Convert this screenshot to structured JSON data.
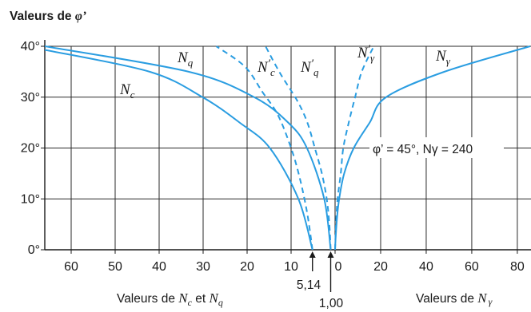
{
  "chart_data": {
    "type": "line",
    "title": "",
    "ylabel_text": "Valeurs de ",
    "ylabel_symbol": "φ’",
    "xlabel_left_text": "Valeurs de ",
    "xlabel_left_nc": "N",
    "xlabel_left_nc_sub": "c",
    "xlabel_left_mid": " et ",
    "xlabel_left_nq": "N",
    "xlabel_left_nq_sub": "q",
    "xlabel_right_text": "Valeurs de ",
    "xlabel_right_n": "N",
    "xlabel_right_sub": "γ",
    "y_ticks": [
      "0°",
      "10°",
      "20°",
      "30°",
      "40°"
    ],
    "y_tick_values": [
      0,
      10,
      20,
      30,
      40
    ],
    "ylim": [
      0,
      40
    ],
    "x_left_ticks": [
      "60",
      "50",
      "40",
      "30",
      "20",
      "10",
      "0"
    ],
    "x_left_tick_values": [
      60,
      50,
      40,
      30,
      20,
      10,
      0
    ],
    "x_left_range": [
      66,
      0
    ],
    "x_right_ticks": [
      "20",
      "40",
      "60",
      "80"
    ],
    "x_right_tick_values": [
      20,
      40,
      60,
      80
    ],
    "x_right_range": [
      0,
      86
    ],
    "grid": true,
    "annotation_text": "φ’ = 45°, Nγ = 240",
    "arrow_labels": [
      {
        "text": "5,14",
        "x_value": 5.14,
        "side": "left"
      },
      {
        "text": "1,00",
        "x_value": 1.0,
        "side": "left"
      }
    ],
    "series": [
      {
        "name": "Nc",
        "side": "left",
        "style": "solid",
        "points": [
          [
            5.14,
            0
          ],
          [
            8.34,
            10
          ],
          [
            14.83,
            20
          ],
          [
            21.7,
            25
          ],
          [
            30.14,
            30
          ],
          [
            42.16,
            35
          ],
          [
            66.0,
            39.3
          ]
        ]
      },
      {
        "name": "Nq",
        "side": "left",
        "style": "solid",
        "points": [
          [
            1.0,
            0
          ],
          [
            2.47,
            10
          ],
          [
            6.4,
            20
          ],
          [
            10.66,
            25
          ],
          [
            18.4,
            30
          ],
          [
            33.3,
            35
          ],
          [
            66.0,
            40.0
          ]
        ]
      },
      {
        "name": "N’c",
        "side": "left",
        "style": "dashed",
        "points": [
          [
            5.14,
            0
          ],
          [
            6.3,
            7
          ],
          [
            8.0,
            14
          ],
          [
            10.0,
            20
          ],
          [
            13.0,
            26.5
          ],
          [
            16.5,
            31
          ],
          [
            20.5,
            36
          ],
          [
            27.0,
            40
          ]
        ]
      },
      {
        "name": "N’q",
        "side": "left",
        "style": "dashed",
        "points": [
          [
            1.0,
            0
          ],
          [
            1.3,
            5
          ],
          [
            1.9,
            10
          ],
          [
            3.0,
            15
          ],
          [
            4.6,
            20
          ],
          [
            6.3,
            25
          ],
          [
            8.6,
            29.3
          ],
          [
            12.5,
            34.7
          ],
          [
            15.8,
            40
          ]
        ]
      },
      {
        "name": "N’γ",
        "side": "right",
        "style": "dashed",
        "points": [
          [
            0,
            0
          ],
          [
            0.4,
            5
          ],
          [
            1.1,
            10
          ],
          [
            2.5,
            15
          ],
          [
            3.6,
            20
          ],
          [
            6.0,
            25
          ],
          [
            8.8,
            30
          ],
          [
            11.7,
            35
          ],
          [
            17.0,
            40
          ]
        ]
      },
      {
        "name": "Nγ",
        "side": "right",
        "style": "solid",
        "points": [
          [
            0,
            0
          ],
          [
            0.2,
            2
          ],
          [
            0.8,
            6
          ],
          [
            1.8,
            10
          ],
          [
            4.0,
            15
          ],
          [
            8.2,
            20
          ],
          [
            15.2,
            25
          ],
          [
            22.4,
            30
          ],
          [
            48.0,
            35
          ],
          [
            85.6,
            40
          ]
        ]
      }
    ],
    "curve_labels": [
      {
        "main": "N",
        "sub": "c",
        "prime": false
      },
      {
        "main": "N",
        "sub": "q",
        "prime": false
      },
      {
        "main": "N",
        "sub": "c",
        "prime": true
      },
      {
        "main": "N",
        "sub": "q",
        "prime": true
      },
      {
        "main": "N",
        "sub": "γ",
        "prime": true
      },
      {
        "main": "N",
        "sub": "γ",
        "prime": false
      }
    ],
    "colors": {
      "curve": "#2a9de1",
      "axis": "#1a1a1a",
      "grid": "#2a2a2a"
    }
  }
}
